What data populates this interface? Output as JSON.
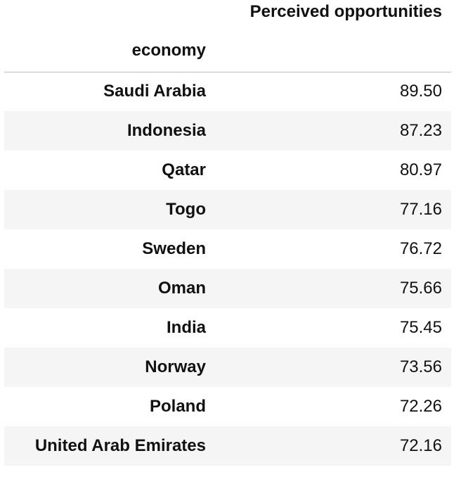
{
  "table": {
    "column_header": "Perceived opportunities",
    "index_name": "economy",
    "rows": [
      {
        "economy": "Saudi Arabia",
        "value": "89.50"
      },
      {
        "economy": "Indonesia",
        "value": "87.23"
      },
      {
        "economy": "Qatar",
        "value": "80.97"
      },
      {
        "economy": "Togo",
        "value": "77.16"
      },
      {
        "economy": "Sweden",
        "value": "76.72"
      },
      {
        "economy": "Oman",
        "value": "75.66"
      },
      {
        "economy": "India",
        "value": "75.45"
      },
      {
        "economy": "Norway",
        "value": "73.56"
      },
      {
        "economy": "Poland",
        "value": "72.26"
      },
      {
        "economy": "United Arab Emirates",
        "value": "72.16"
      }
    ]
  }
}
